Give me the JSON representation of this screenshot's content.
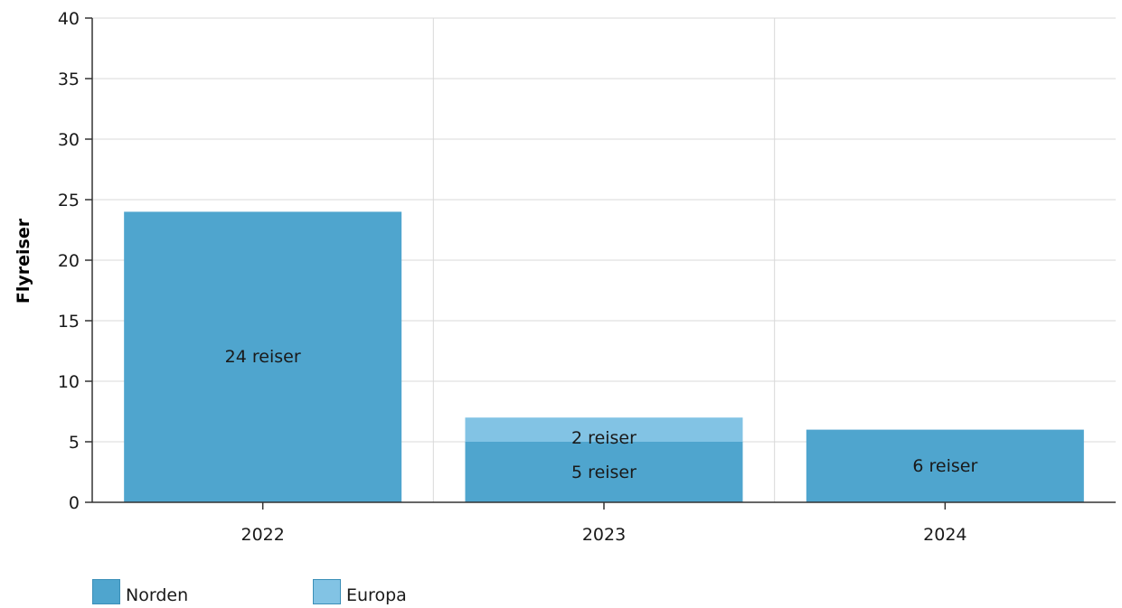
{
  "chart_data": {
    "type": "bar",
    "stacked": true,
    "categories": [
      "2022",
      "2023",
      "2024"
    ],
    "ylabel": "Flyreiser",
    "xlabel": "",
    "ylim": [
      0,
      40
    ],
    "yticks": [
      0,
      5,
      10,
      15,
      20,
      25,
      30,
      35,
      40
    ],
    "grid": true,
    "legend_position": "bottom-left",
    "series": [
      {
        "name": "Norden",
        "color": "#4fa5ce",
        "values": [
          24,
          5,
          6
        ],
        "labels": [
          "24 reiser",
          "5 reiser",
          "6 reiser"
        ]
      },
      {
        "name": "Europa",
        "color": "#82c3e4",
        "values": [
          0,
          2,
          0
        ],
        "labels": [
          "",
          "2 reiser",
          ""
        ]
      }
    ]
  }
}
